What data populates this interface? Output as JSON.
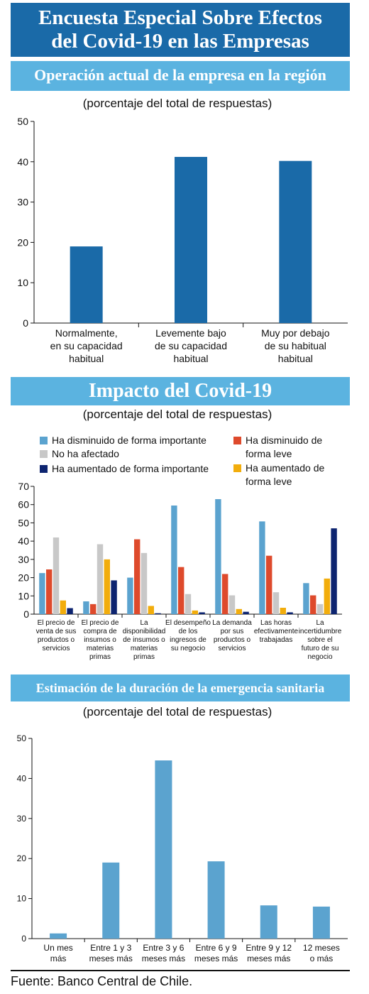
{
  "header": {
    "title_line1": "Encuesta Especial Sobre Efectos",
    "title_line2": "del Covid-19 en las Empresas"
  },
  "colors": {
    "dark_blue": "#1a6aa8",
    "light_band": "#5bb3e0",
    "bar_light_blue": "#5ba3cf",
    "bar_red": "#de4a2c",
    "bar_gray": "#c8c8c8",
    "bar_orange": "#f2ad0c",
    "bar_navy": "#0d2470"
  },
  "chart_data": [
    {
      "type": "bar",
      "title": "Operación actual de la empresa en la región",
      "subtitle": "(porcentaje del total de respuestas)",
      "categories": [
        [
          "Normalmente,",
          "en su capacidad",
          "habitual"
        ],
        [
          "Levemente bajo",
          "de su capacidad",
          "habitual"
        ],
        [
          "Muy por debajo",
          "de su habitual",
          "habitual"
        ]
      ],
      "values": [
        19,
        41.2,
        40.2
      ],
      "ylim": [
        0,
        50
      ],
      "yticks": [
        0,
        10,
        20,
        30,
        40,
        50
      ]
    },
    {
      "type": "bar",
      "title": "Impacto del Covid-19",
      "subtitle": "(porcentaje del total de respuestas)",
      "categories": [
        [
          "El precio de",
          "venta de sus",
          "productos o",
          "servicios"
        ],
        [
          "El precio de",
          "compra de",
          "insumos o",
          "materias",
          "primas"
        ],
        [
          "La",
          "disponibilidad",
          "de insumos o",
          "materias",
          "primas"
        ],
        [
          "El desempeño",
          "de los",
          "ingresos de",
          "su negocio"
        ],
        [
          "La demanda",
          "por sus",
          "productos o",
          "servicios"
        ],
        [
          "Las horas",
          "efectivamente",
          "trabajadas"
        ],
        [
          "La",
          "incertidumbre",
          "sobre el",
          "futuro de su",
          "negocio"
        ]
      ],
      "series": [
        {
          "name": "Ha disminuido de forma importante",
          "values": [
            22.5,
            7,
            20,
            59.5,
            63,
            50.8,
            17
          ]
        },
        {
          "name": "Ha disminuido de forma leve",
          "values": [
            24.5,
            5.5,
            41,
            25.8,
            22,
            32,
            10.3
          ]
        },
        {
          "name": "No ha afectado",
          "values": [
            42,
            38.3,
            33.5,
            11,
            10.3,
            12,
            5.5
          ]
        },
        {
          "name": "Ha aumentado de forma leve",
          "values": [
            7.5,
            30,
            4.5,
            2,
            2.8,
            3.5,
            19.5
          ]
        },
        {
          "name": "Ha aumentado de forma importante",
          "values": [
            3.3,
            18.5,
            0.5,
            1,
            1.3,
            1,
            47
          ]
        }
      ],
      "legend": [
        {
          "label": [
            "Ha disminuido de forma importante"
          ],
          "series": 0
        },
        {
          "label": [
            "No ha afectado"
          ],
          "series": 2
        },
        {
          "label": [
            "Ha aumentado de forma importante"
          ],
          "series": 4
        },
        {
          "label": [
            "Ha disminuido de",
            "forma leve"
          ],
          "series": 1
        },
        {
          "label": [
            "Ha aumentado de",
            "forma leve"
          ],
          "series": 3
        }
      ],
      "legend_placement": "top",
      "ylim": [
        0,
        70
      ],
      "yticks": [
        0,
        10,
        20,
        30,
        40,
        50,
        60,
        70
      ]
    },
    {
      "type": "bar",
      "title": "Estimación de la duración de la emergencia sanitaria",
      "subtitle": "(porcentaje del total de respuestas)",
      "categories": [
        [
          "Un mes",
          "más"
        ],
        [
          "Entre 1 y 3",
          "meses más"
        ],
        [
          "Entre 3 y 6",
          "meses más"
        ],
        [
          "Entre 6 y 9",
          "meses más"
        ],
        [
          "Entre 9 y 12",
          "meses más"
        ],
        [
          "12  meses",
          "o más"
        ]
      ],
      "values": [
        1.3,
        19,
        44.5,
        19.3,
        8.3,
        8
      ],
      "ylim": [
        0,
        50
      ],
      "yticks": [
        0,
        10,
        20,
        30,
        40,
        50
      ]
    }
  ],
  "footer": {
    "source": "Fuente: Banco Central de Chile."
  }
}
